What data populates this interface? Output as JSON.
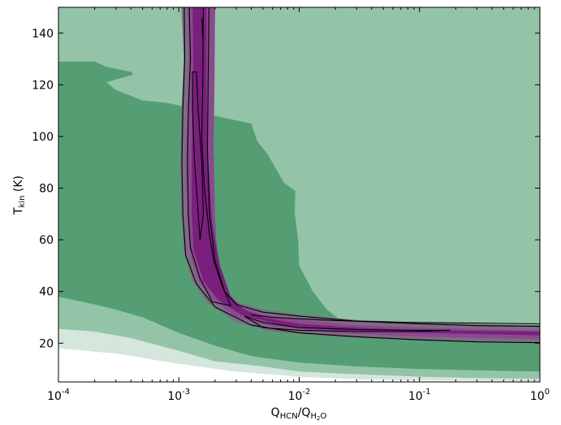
{
  "chart_data": {
    "type": "contour",
    "xlabel": {
      "main": "Q",
      "sub1": "HCN",
      "mid": "/Q",
      "sub2": "H",
      "sub3": "2",
      "sub4": "O"
    },
    "ylabel": {
      "main": "T",
      "sub": "kin",
      "unit": " (K)"
    },
    "xscale": "log",
    "xlim": [
      0.0001,
      1
    ],
    "ylim": [
      5,
      150
    ],
    "xticks": [
      {
        "value": 0.0001,
        "base": "10",
        "exp": "-4"
      },
      {
        "value": 0.001,
        "base": "10",
        "exp": "-3"
      },
      {
        "value": 0.01,
        "base": "10",
        "exp": "-2"
      },
      {
        "value": 0.1,
        "base": "10",
        "exp": "-1"
      },
      {
        "value": 1,
        "base": "10",
        "exp": "0"
      }
    ],
    "yticks": [
      20,
      40,
      60,
      80,
      100,
      120,
      140
    ],
    "colors": {
      "green_light": "#d5e6dc",
      "green_mid": "#94c4a8",
      "green_dark": "#559e73",
      "purple_outer": "#7e6c85",
      "purple_mid": "#8a4a8e",
      "purple_core": "#7a1f7e"
    },
    "regions": [
      {
        "name": "green-outer",
        "color_key": "green_light",
        "points": [
          [
            0.0001,
            18
          ],
          [
            0.0003,
            16
          ],
          [
            0.001,
            12
          ],
          [
            0.003,
            9
          ],
          [
            0.01,
            7
          ],
          [
            0.03,
            6
          ],
          [
            0.1,
            5.6
          ],
          [
            1,
            5.2
          ],
          [
            1,
            150
          ],
          [
            0.0001,
            150
          ]
        ]
      },
      {
        "name": "green-middle",
        "color_key": "green_mid",
        "points": [
          [
            0.0001,
            25.5
          ],
          [
            0.0002,
            24.5
          ],
          [
            0.0004,
            22
          ],
          [
            0.001,
            17
          ],
          [
            0.002,
            13
          ],
          [
            0.005,
            11
          ],
          [
            0.01,
            9
          ],
          [
            0.03,
            8
          ],
          [
            0.1,
            7
          ],
          [
            0.3,
            6.5
          ],
          [
            1,
            6.2
          ],
          [
            1,
            150
          ],
          [
            0.0001,
            150
          ]
        ]
      },
      {
        "name": "green-inner",
        "color_key": "green_dark",
        "points": [
          [
            0.0001,
            129
          ],
          [
            0.0002,
            129
          ],
          [
            0.00025,
            127
          ],
          [
            0.0004,
            125
          ],
          [
            0.00042,
            124
          ],
          [
            0.00025,
            121
          ],
          [
            0.0003,
            118
          ],
          [
            0.0005,
            114
          ],
          [
            0.0008,
            113
          ],
          [
            0.001,
            112
          ],
          [
            0.002,
            108
          ],
          [
            0.004,
            105
          ],
          [
            0.0045,
            98
          ],
          [
            0.0055,
            93
          ],
          [
            0.0075,
            82
          ],
          [
            0.0093,
            79
          ],
          [
            0.0092,
            70
          ],
          [
            0.0098,
            60
          ],
          [
            0.01,
            50
          ],
          [
            0.013,
            40
          ],
          [
            0.017,
            33
          ],
          [
            0.03,
            24
          ],
          [
            0.05,
            23
          ],
          [
            0.1,
            22
          ],
          [
            0.2,
            22.5
          ],
          [
            0.4,
            22.8
          ],
          [
            1,
            23
          ],
          [
            1,
            9
          ],
          [
            0.3,
            9.5
          ],
          [
            0.1,
            10
          ],
          [
            0.03,
            11
          ],
          [
            0.01,
            12.5
          ],
          [
            0.004,
            15
          ],
          [
            0.002,
            19
          ],
          [
            0.001,
            24
          ],
          [
            0.0005,
            30
          ],
          [
            0.0003,
            33
          ],
          [
            0.0002,
            35
          ],
          [
            0.0001,
            38
          ]
        ]
      },
      {
        "name": "purple-outer",
        "color_key": "purple_outer",
        "points": [
          [
            0.00105,
            150
          ],
          [
            0.0011,
            130
          ],
          [
            0.00105,
            110
          ],
          [
            0.00103,
            90
          ],
          [
            0.00105,
            70
          ],
          [
            0.0011,
            55
          ],
          [
            0.0013,
            44
          ],
          [
            0.0017,
            36
          ],
          [
            0.003,
            28
          ],
          [
            0.006,
            24.5
          ],
          [
            0.02,
            22.5
          ],
          [
            0.1,
            21
          ],
          [
            1,
            20
          ],
          [
            1,
            27
          ],
          [
            0.3,
            27.5
          ],
          [
            0.1,
            28
          ],
          [
            0.03,
            29
          ],
          [
            0.01,
            31
          ],
          [
            0.005,
            33
          ],
          [
            0.003,
            36
          ],
          [
            0.0024,
            41
          ],
          [
            0.002,
            55
          ],
          [
            0.0019,
            70
          ],
          [
            0.00185,
            95
          ],
          [
            0.0019,
            120
          ],
          [
            0.0019,
            150
          ]
        ]
      },
      {
        "name": "purple-mid",
        "color_key": "purple_mid",
        "points": [
          [
            0.00118,
            150
          ],
          [
            0.00121,
            130
          ],
          [
            0.00118,
            110
          ],
          [
            0.00115,
            90
          ],
          [
            0.00117,
            70
          ],
          [
            0.00122,
            56
          ],
          [
            0.00145,
            44
          ],
          [
            0.0019,
            37
          ],
          [
            0.003,
            30
          ],
          [
            0.006,
            26.5
          ],
          [
            0.02,
            24
          ],
          [
            0.1,
            22.5
          ],
          [
            1,
            21.5
          ],
          [
            1,
            25
          ],
          [
            0.3,
            25.5
          ],
          [
            0.1,
            26
          ],
          [
            0.03,
            27
          ],
          [
            0.01,
            29
          ],
          [
            0.005,
            31
          ],
          [
            0.0033,
            34
          ],
          [
            0.0025,
            40
          ],
          [
            0.0021,
            52
          ],
          [
            0.002,
            68
          ],
          [
            0.00195,
            95
          ],
          [
            0.00198,
            120
          ],
          [
            0.002,
            150
          ]
        ]
      },
      {
        "name": "purple-core",
        "color_key": "purple_core",
        "points": [
          [
            0.0013,
            150
          ],
          [
            0.00132,
            130
          ],
          [
            0.0013,
            110
          ],
          [
            0.00128,
            90
          ],
          [
            0.00128,
            70
          ],
          [
            0.00133,
            56
          ],
          [
            0.0016,
            44
          ],
          [
            0.0021,
            37
          ],
          [
            0.0033,
            31
          ],
          [
            0.007,
            27
          ],
          [
            0.02,
            25
          ],
          [
            0.1,
            24
          ],
          [
            1,
            23
          ],
          [
            1,
            24.5
          ],
          [
            0.3,
            24.8
          ],
          [
            0.1,
            25
          ],
          [
            0.03,
            26
          ],
          [
            0.01,
            27.5
          ],
          [
            0.005,
            30
          ],
          [
            0.0035,
            33
          ],
          [
            0.0027,
            38
          ],
          [
            0.0022,
            50
          ],
          [
            0.0019,
            66
          ],
          [
            0.00175,
            90
          ],
          [
            0.0017,
            120
          ],
          [
            0.0017,
            150
          ]
        ]
      }
    ],
    "contours": [
      {
        "name": "contour-outer",
        "points": [
          [
            0.00111,
            150
          ],
          [
            0.00112,
            130
          ],
          [
            0.00108,
            110
          ],
          [
            0.00106,
            90
          ],
          [
            0.00108,
            70
          ],
          [
            0.00114,
            54
          ],
          [
            0.0014,
            43
          ],
          [
            0.002,
            34
          ],
          [
            0.004,
            27
          ],
          [
            0.01,
            24
          ],
          [
            0.03,
            22.5
          ],
          [
            0.1,
            21.3
          ],
          [
            0.3,
            20.5
          ],
          [
            1,
            20.2
          ],
          [
            1,
            26.5
          ],
          [
            0.3,
            26.8
          ],
          [
            0.1,
            27.5
          ],
          [
            0.03,
            28.5
          ],
          [
            0.01,
            30.5
          ],
          [
            0.005,
            32
          ],
          [
            0.003,
            35
          ],
          [
            0.0024,
            40
          ],
          [
            0.002,
            52
          ],
          [
            0.0018,
            70
          ],
          [
            0.00173,
            95
          ],
          [
            0.00175,
            120
          ],
          [
            0.00178,
            150
          ]
        ]
      },
      {
        "name": "contour-inner-upper",
        "points": [
          [
            0.00122,
            150
          ],
          [
            0.00125,
            130
          ],
          [
            0.0012,
            110
          ],
          [
            0.00118,
            90
          ],
          [
            0.0012,
            70
          ],
          [
            0.00125,
            57
          ],
          [
            0.0015,
            45
          ],
          [
            0.0019,
            36
          ],
          [
            0.0027,
            34.5
          ],
          [
            0.0023,
            42
          ],
          [
            0.00195,
            52
          ],
          [
            0.0018,
            62
          ],
          [
            0.00163,
            80
          ],
          [
            0.00155,
            100
          ],
          [
            0.00158,
            120
          ],
          [
            0.0016,
            150
          ]
        ]
      },
      {
        "name": "contour-inner-lower",
        "points": [
          [
            0.0035,
            30.5
          ],
          [
            0.005,
            28
          ],
          [
            0.01,
            26
          ],
          [
            0.03,
            25.3
          ],
          [
            0.09,
            25
          ],
          [
            0.18,
            25
          ],
          [
            0.09,
            24.5
          ],
          [
            0.03,
            24.5
          ],
          [
            0.01,
            25
          ],
          [
            0.005,
            26
          ],
          [
            0.0035,
            30.5
          ]
        ]
      },
      {
        "name": "contour-small-loop",
        "points": [
          [
            0.0013,
            125
          ],
          [
            0.0014,
            125
          ],
          [
            0.00145,
            110
          ],
          [
            0.00155,
            90
          ],
          [
            0.0016,
            70
          ],
          [
            0.0015,
            60
          ],
          [
            0.00145,
            70
          ],
          [
            0.00135,
            90
          ],
          [
            0.0013,
            110
          ],
          [
            0.0013,
            125
          ]
        ]
      },
      {
        "name": "contour-dash-top",
        "points": [
          [
            0.00155,
            146
          ],
          [
            0.00158,
            138
          ]
        ]
      },
      {
        "name": "contour-tail",
        "points": [
          [
            0.004,
            31
          ],
          [
            0.006,
            30
          ],
          [
            0.015,
            29
          ],
          [
            0.03,
            28.5
          ],
          [
            0.1,
            28
          ],
          [
            0.3,
            27.8
          ],
          [
            1,
            27.5
          ]
        ]
      }
    ]
  }
}
